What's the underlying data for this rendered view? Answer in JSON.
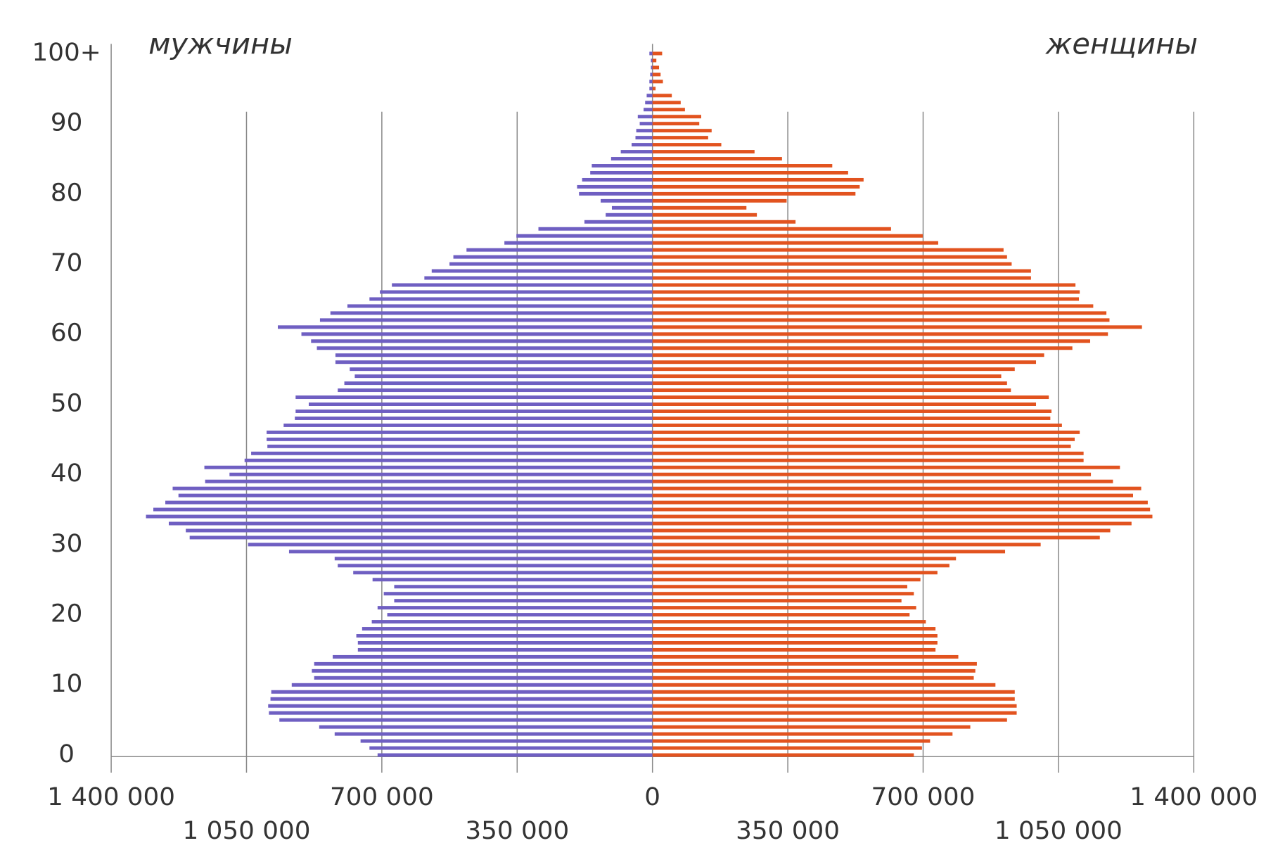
{
  "chart_data": {
    "type": "pyramid",
    "categories": [
      "0",
      null,
      null,
      null,
      null,
      null,
      null,
      null,
      null,
      null,
      "10",
      null,
      null,
      null,
      null,
      null,
      null,
      null,
      null,
      null,
      "20",
      null,
      null,
      null,
      null,
      null,
      null,
      null,
      null,
      null,
      "30",
      null,
      null,
      null,
      null,
      null,
      null,
      null,
      null,
      null,
      "40",
      null,
      null,
      null,
      null,
      null,
      null,
      null,
      null,
      null,
      "50",
      null,
      null,
      null,
      null,
      null,
      null,
      null,
      null,
      null,
      "60",
      null,
      null,
      null,
      null,
      null,
      null,
      null,
      null,
      null,
      "70",
      null,
      null,
      null,
      null,
      null,
      null,
      null,
      null,
      null,
      "80",
      null,
      null,
      null,
      null,
      null,
      null,
      null,
      null,
      null,
      "90",
      null,
      null,
      null,
      null,
      null,
      null,
      null,
      null,
      null,
      "100+"
    ],
    "series": [
      {
        "name": "мужчины",
        "side": "left",
        "color": "#6f5fc2",
        "values": [
          711000,
          732000,
          755000,
          822000,
          862000,
          965000,
          992000,
          994000,
          988000,
          986000,
          933000,
          875000,
          881000,
          875000,
          827000,
          762000,
          762000,
          766000,
          751000,
          726000,
          686000,
          711000,
          668000,
          695000,
          668000,
          724000,
          774000,
          814000,
          822000,
          940000,
          1046000,
          1197000,
          1207000,
          1251000,
          1310000,
          1291000,
          1260000,
          1226000,
          1241000,
          1157000,
          1094000,
          1159000,
          1055000,
          1038000,
          996000,
          998000,
          998000,
          954000,
          925000,
          923000,
          889000,
          923000,
          814000,
          797000,
          770000,
          783000,
          820000,
          820000,
          868000,
          883000,
          908000,
          969000,
          860000,
          833000,
          789000,
          732000,
          705000,
          674000,
          590000,
          571000,
          525000,
          515000,
          481000,
          383000,
          352000,
          295000,
          176000,
          121000,
          105000,
          134000,
          190000,
          195000,
          182000,
          161000,
          157000,
          107000,
          82000,
          54000,
          44000,
          42000,
          33000,
          38000,
          23000,
          19000,
          15000,
          8000,
          8000,
          6000,
          4000,
          4000,
          8000
        ]
      },
      {
        "name": "женщины",
        "side": "right",
        "color": "#e2531f",
        "values": [
          676000,
          697000,
          718000,
          776000,
          822000,
          917000,
          942000,
          942000,
          937000,
          937000,
          887000,
          831000,
          835000,
          839000,
          791000,
          732000,
          737000,
          737000,
          732000,
          707000,
          665000,
          682000,
          644000,
          676000,
          659000,
          693000,
          737000,
          768000,
          785000,
          912000,
          1004000,
          1157000,
          1184000,
          1239000,
          1293000,
          1287000,
          1281000,
          1243000,
          1264000,
          1191000,
          1134000,
          1209000,
          1115000,
          1115000,
          1082000,
          1092000,
          1105000,
          1059000,
          1029000,
          1032000,
          992000,
          1025000,
          927000,
          917000,
          902000,
          937000,
          992000,
          1013000,
          1086000,
          1132000,
          1178000,
          1266000,
          1182000,
          1174000,
          1140000,
          1103000,
          1105000,
          1094000,
          979000,
          979000,
          929000,
          917000,
          908000,
          739000,
          699000,
          617000,
          370000,
          270000,
          243000,
          347000,
          525000,
          536000,
          546000,
          506000,
          465000,
          335000,
          264000,
          178000,
          144000,
          153000,
          121000,
          126000,
          84000,
          73000,
          50000,
          8000,
          27000,
          21000,
          17000,
          10000,
          25000
        ]
      }
    ],
    "xlim": [
      -1400000,
      1400000
    ],
    "xticks": [
      {
        "value": -1400000,
        "label": "1 400 000"
      },
      {
        "value": -1050000,
        "label": "1 050 000"
      },
      {
        "value": -700000,
        "label": "700 000"
      },
      {
        "value": -350000,
        "label": "350 000"
      },
      0,
      {
        "value": 350000,
        "label": "350 000"
      },
      {
        "value": 700000,
        "label": "700 000"
      },
      {
        "value": 1050000,
        "label": "1 050 000"
      },
      {
        "value": 1400000,
        "label": "1 400 000"
      }
    ],
    "grid": true
  }
}
